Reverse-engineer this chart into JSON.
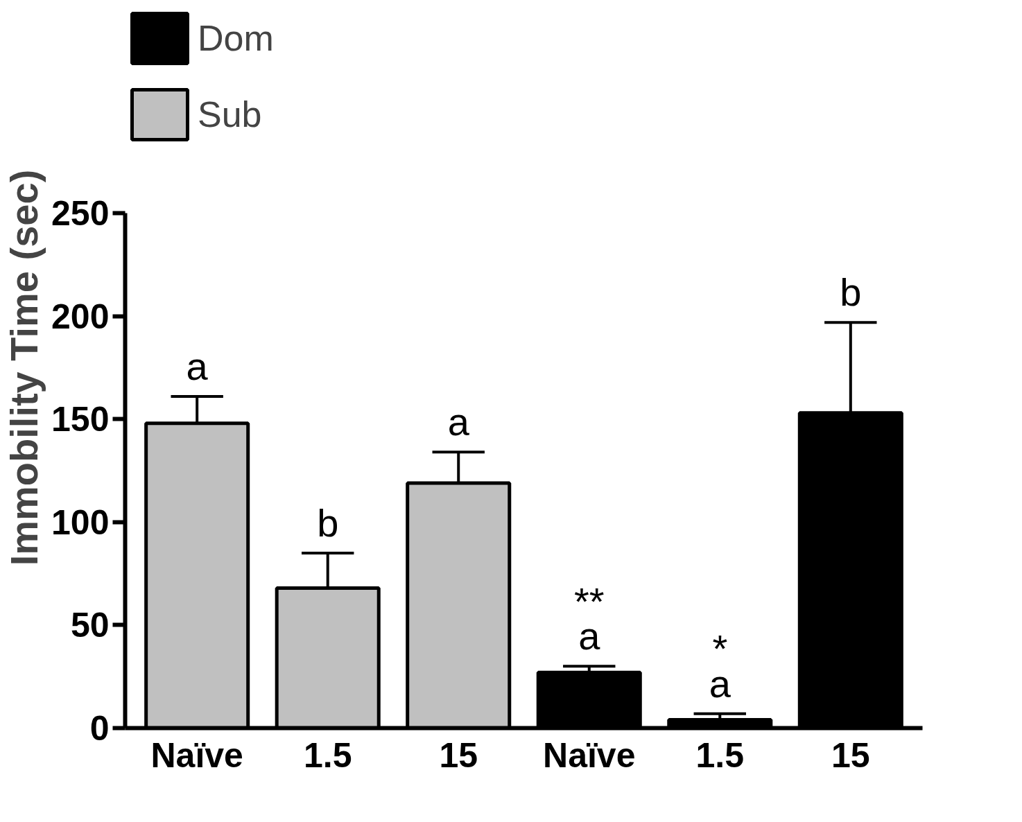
{
  "chart_data": {
    "type": "bar",
    "ylabel": "Immobility Time (sec)",
    "categories": [
      "Naïve",
      "1.5",
      "15",
      "Naïve",
      "1.5",
      "15"
    ],
    "series": [
      {
        "name": "Dom",
        "color": "#000000",
        "values": [
          null,
          null,
          null,
          27,
          4,
          153
        ],
        "errors": [
          null,
          null,
          null,
          [
            27,
            30
          ],
          [
            4,
            7
          ],
          [
            153,
            197
          ]
        ],
        "value_labels": [
          null,
          null,
          null,
          "**\na",
          "*\na",
          "b"
        ]
      },
      {
        "name": "Sub",
        "color": "#c0c0c0",
        "values": [
          148,
          68,
          119,
          null,
          null,
          null
        ],
        "errors": [
          [
            148,
            161
          ],
          [
            68,
            85
          ],
          [
            119,
            134
          ],
          null,
          null,
          null
        ],
        "value_labels": [
          "a",
          "b",
          "a",
          null,
          null,
          null
        ]
      }
    ],
    "ylim": [
      0,
      250
    ],
    "yticks": [
      0,
      50,
      100,
      150,
      200,
      250
    ],
    "grid": false,
    "legend": "top left"
  }
}
